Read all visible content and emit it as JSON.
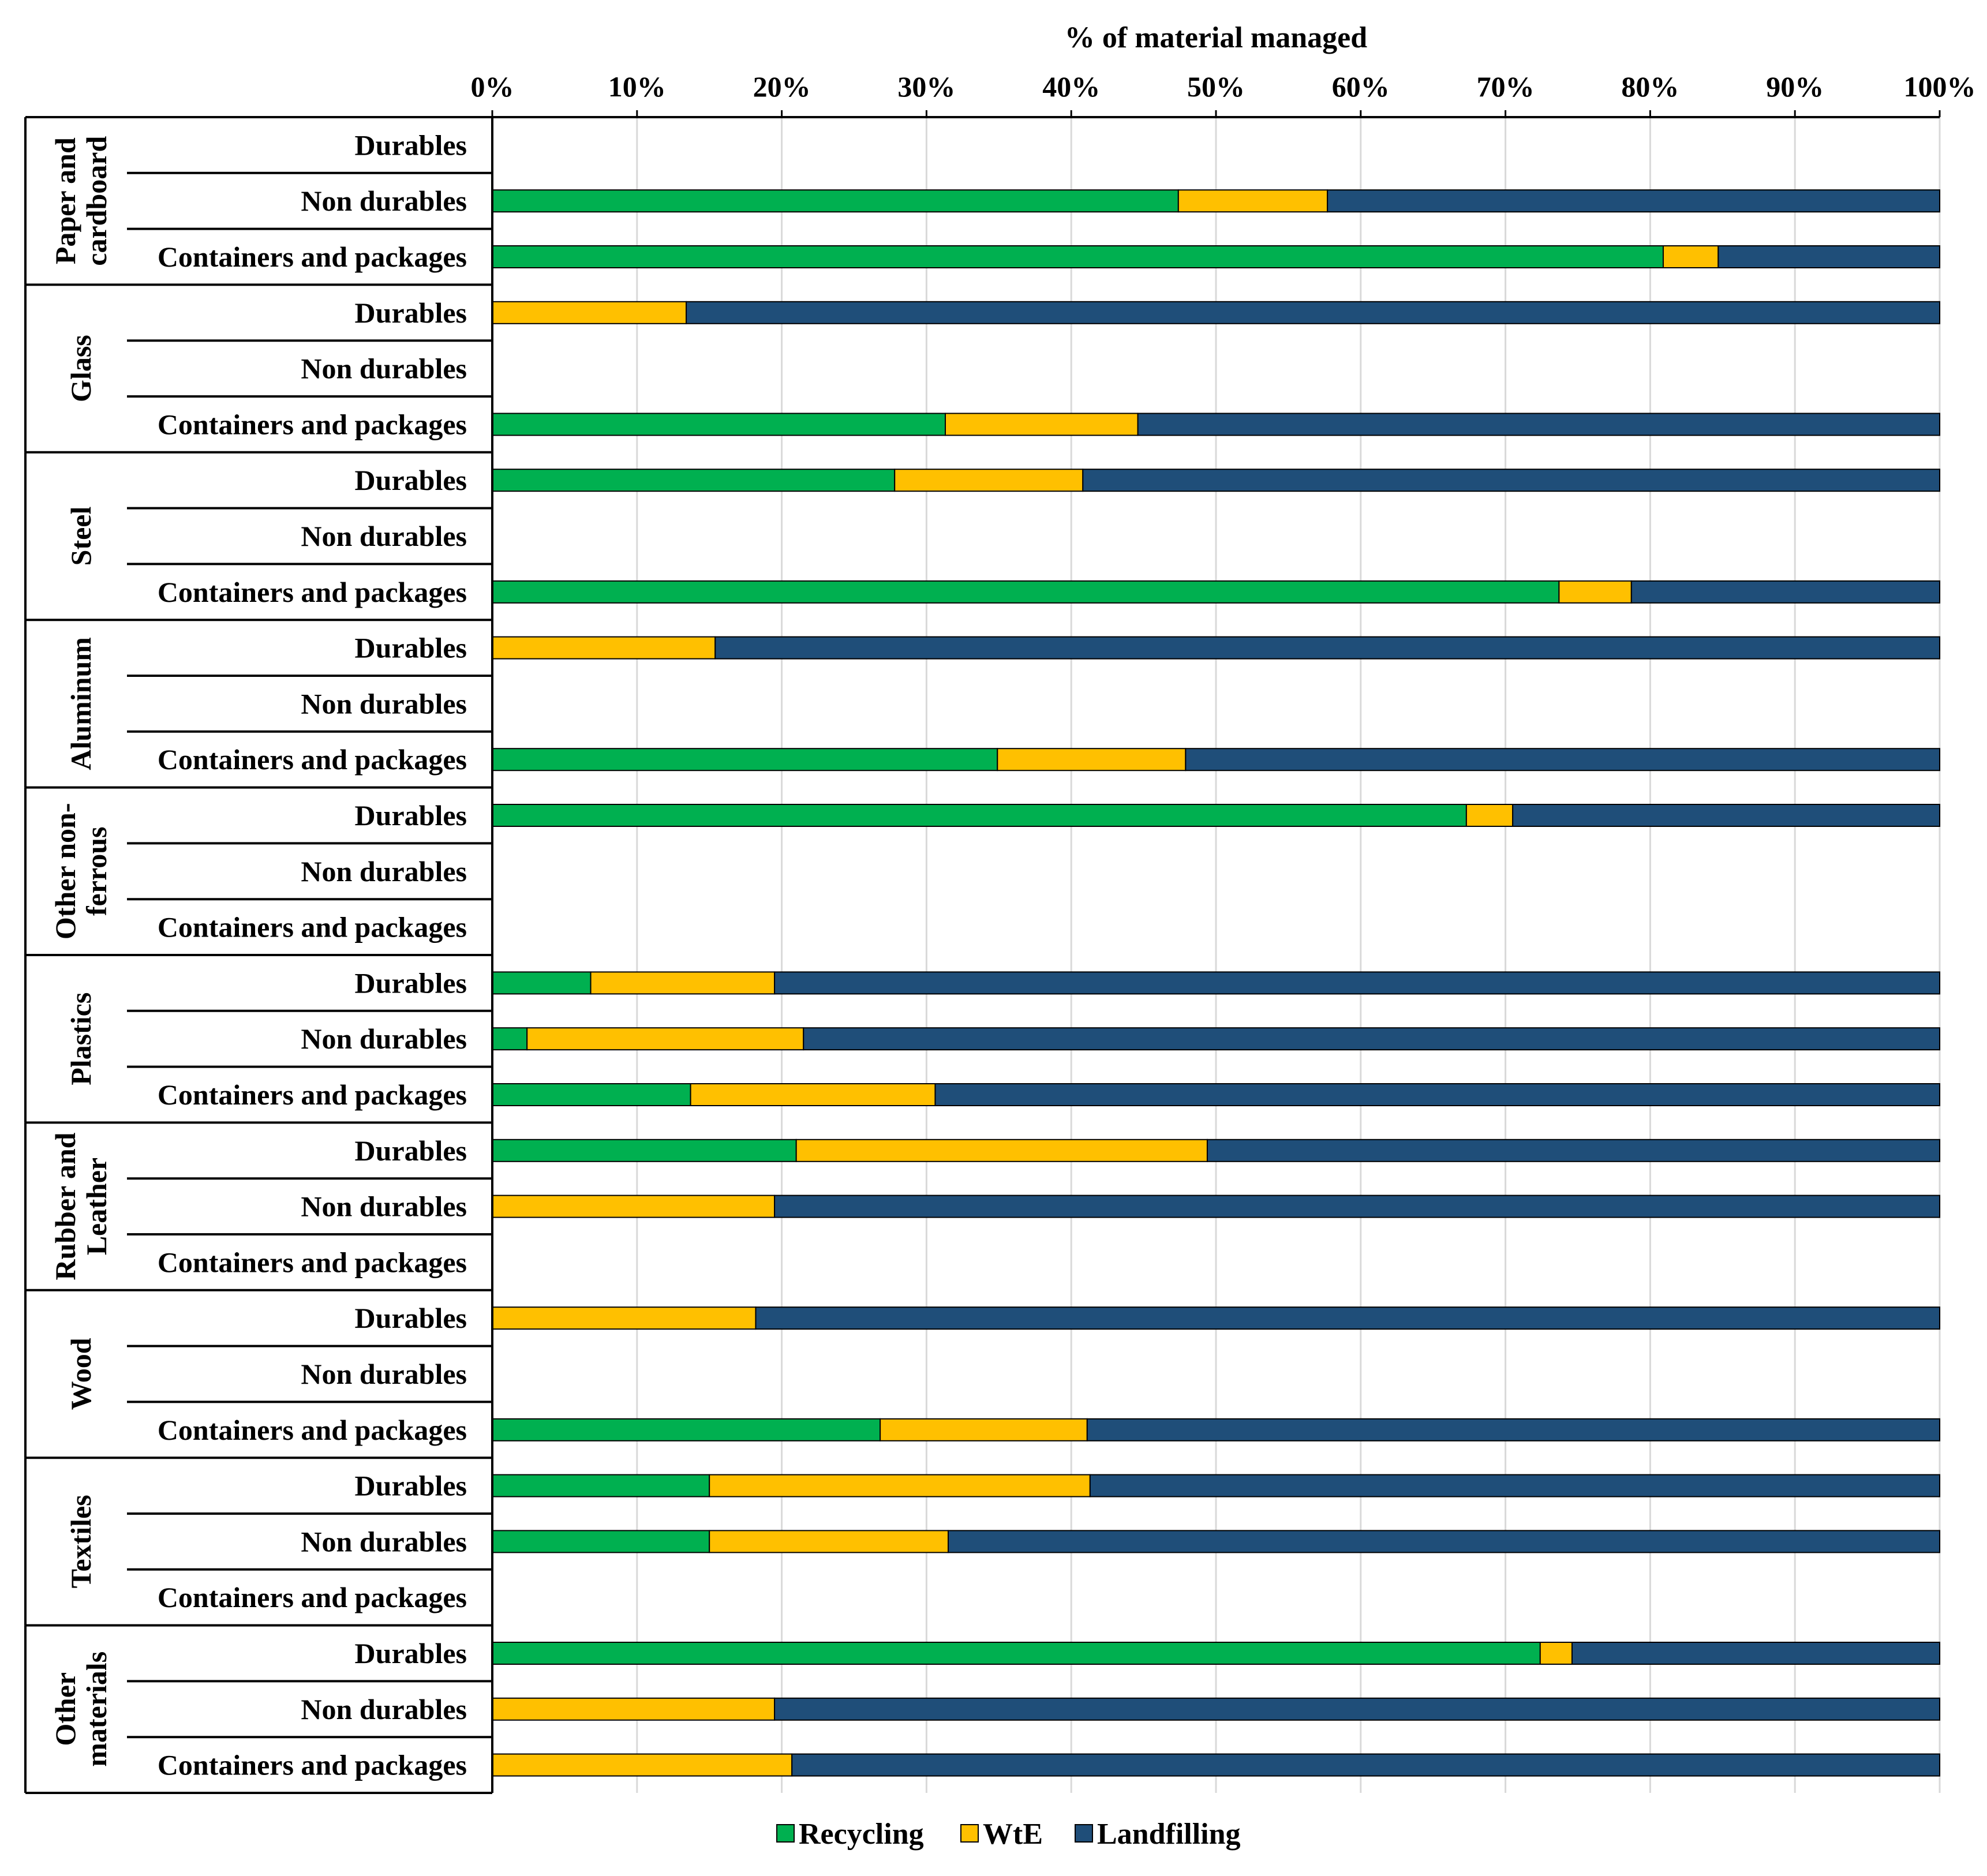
{
  "chart_data": {
    "type": "bar",
    "orientation": "horizontal",
    "stacked": true,
    "title": "",
    "xlabel": "% of material managed",
    "xlabel_position": "top",
    "xlim": [
      0,
      100
    ],
    "x_ticks": [
      0,
      10,
      20,
      30,
      40,
      50,
      60,
      70,
      80,
      90,
      100
    ],
    "x_tick_labels": [
      "0%",
      "10%",
      "20%",
      "30%",
      "40%",
      "50%",
      "60%",
      "70%",
      "80%",
      "90%",
      "100%"
    ],
    "grid": true,
    "legend_position": "bottom",
    "series": [
      {
        "name": "Recycling",
        "color": "#00b050"
      },
      {
        "name": "WtE",
        "color": "#ffc000"
      },
      {
        "name": "Landfilling",
        "color": "#1f4e79"
      }
    ],
    "groups": [
      {
        "name": "Paper and cardboard",
        "label_lines": [
          "Paper and",
          "cardboard"
        ],
        "rows": [
          {
            "label": "Durables",
            "values": null
          },
          {
            "label": "Non durables",
            "values": [
              47.4,
              10.3,
              42.3
            ]
          },
          {
            "label": "Containers and packages",
            "values": [
              80.9,
              3.8,
              15.3
            ]
          }
        ]
      },
      {
        "name": "Glass",
        "label_lines": [
          "Glass"
        ],
        "rows": [
          {
            "label": "Durables",
            "values": [
              0,
              13.4,
              86.6
            ]
          },
          {
            "label": "Non durables",
            "values": null
          },
          {
            "label": "Containers and packages",
            "values": [
              31.3,
              13.3,
              55.4
            ]
          }
        ]
      },
      {
        "name": "Steel",
        "label_lines": [
          "Steel"
        ],
        "rows": [
          {
            "label": "Durables",
            "values": [
              27.8,
              13.0,
              59.2
            ]
          },
          {
            "label": "Non durables",
            "values": null
          },
          {
            "label": "Containers and packages",
            "values": [
              73.7,
              5.0,
              21.3
            ]
          }
        ]
      },
      {
        "name": "Aluminum",
        "label_lines": [
          "Aluminum"
        ],
        "rows": [
          {
            "label": "Durables",
            "values": [
              0,
              15.4,
              84.6
            ]
          },
          {
            "label": "Non durables",
            "values": null
          },
          {
            "label": "Containers and packages",
            "values": [
              34.9,
              13.0,
              52.1
            ]
          }
        ]
      },
      {
        "name": "Other non-ferrous",
        "label_lines": [
          "Other non-",
          "ferrous"
        ],
        "rows": [
          {
            "label": "Durables",
            "values": [
              67.3,
              3.2,
              29.5
            ]
          },
          {
            "label": "Non durables",
            "values": null
          },
          {
            "label": "Containers and packages",
            "values": null
          }
        ]
      },
      {
        "name": "Plastics",
        "label_lines": [
          "Plastics"
        ],
        "rows": [
          {
            "label": "Durables",
            "values": [
              6.8,
              12.7,
              80.5
            ]
          },
          {
            "label": "Non durables",
            "values": [
              2.4,
              19.1,
              78.5
            ]
          },
          {
            "label": "Containers and packages",
            "values": [
              13.7,
              16.9,
              69.4
            ]
          }
        ]
      },
      {
        "name": "Rubber and Leather",
        "label_lines": [
          "Rubber and",
          "Leather"
        ],
        "rows": [
          {
            "label": "Durables",
            "values": [
              21.0,
              28.4,
              50.6
            ]
          },
          {
            "label": "Non durables",
            "values": [
              0,
              19.5,
              80.5
            ]
          },
          {
            "label": "Containers and packages",
            "values": null
          }
        ]
      },
      {
        "name": "Wood",
        "label_lines": [
          "Wood"
        ],
        "rows": [
          {
            "label": "Durables",
            "values": [
              0,
              18.2,
              81.8
            ]
          },
          {
            "label": "Non durables",
            "values": null
          },
          {
            "label": "Containers and packages",
            "values": [
              26.8,
              14.3,
              58.9
            ]
          }
        ]
      },
      {
        "name": "Textiles",
        "label_lines": [
          "Textiles"
        ],
        "rows": [
          {
            "label": "Durables",
            "values": [
              15.0,
              26.3,
              58.7
            ]
          },
          {
            "label": "Non durables",
            "values": [
              15.0,
              16.5,
              68.5
            ]
          },
          {
            "label": "Containers and packages",
            "values": null
          }
        ]
      },
      {
        "name": "Other materials",
        "label_lines": [
          "Other",
          "materials"
        ],
        "rows": [
          {
            "label": "Durables",
            "values": [
              72.4,
              2.2,
              25.4
            ]
          },
          {
            "label": "Non durables",
            "values": [
              0,
              19.5,
              80.5
            ]
          },
          {
            "label": "Containers and packages",
            "values": [
              0,
              20.7,
              79.3
            ]
          }
        ]
      }
    ]
  }
}
